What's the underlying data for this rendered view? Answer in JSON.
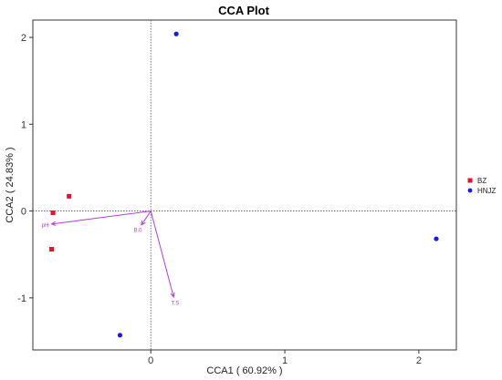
{
  "chart_data": {
    "type": "scatter",
    "title": "CCA Plot",
    "xlabel": "CCA1 ( 60.92% )",
    "ylabel": "CCA2 ( 24.83% )",
    "xlim": [
      -0.88,
      2.28
    ],
    "ylim": [
      -1.6,
      2.2
    ],
    "xticks": [
      0,
      1,
      2
    ],
    "yticks": [
      -1,
      0,
      1,
      2
    ],
    "grid": false,
    "reference_lines": {
      "x": 0,
      "y": 0,
      "style": "dotted"
    },
    "legend_position": "right",
    "series": [
      {
        "name": "BZ",
        "marker": "square",
        "color": "#e8112d",
        "points": [
          {
            "x": -0.73,
            "y": -0.02
          },
          {
            "x": -0.61,
            "y": 0.17
          },
          {
            "x": -0.74,
            "y": -0.44
          }
        ]
      },
      {
        "name": "HNJZ",
        "marker": "circle",
        "color": "#1a1ae6",
        "points": [
          {
            "x": 0.19,
            "y": 2.04
          },
          {
            "x": 2.13,
            "y": -0.32
          },
          {
            "x": -0.23,
            "y": -1.43
          }
        ]
      }
    ],
    "vectors": [
      {
        "label": "pH",
        "x": -0.74,
        "y": -0.15
      },
      {
        "label": "B.0",
        "x": -0.07,
        "y": -0.16
      },
      {
        "label": "T.S",
        "x": 0.17,
        "y": -0.99
      }
    ],
    "vector_color": "#b040d8"
  }
}
